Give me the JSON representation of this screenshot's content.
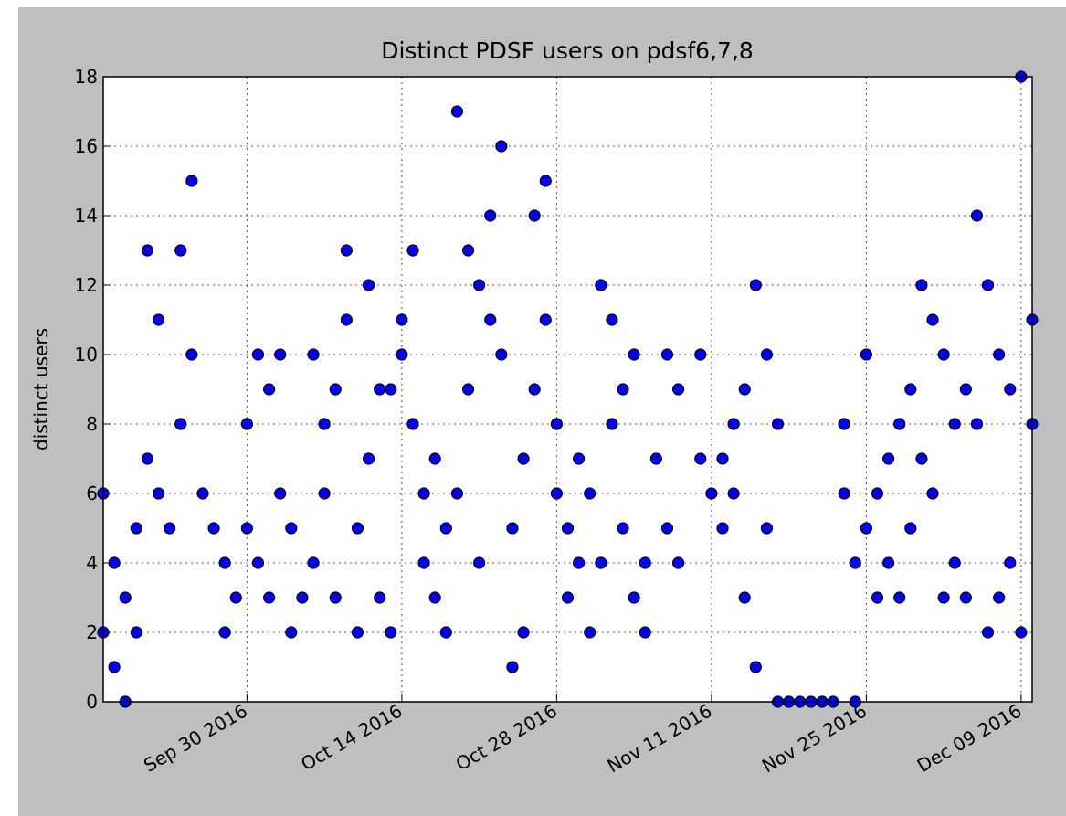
{
  "chart_data": {
    "type": "scatter",
    "title": "Distinct PDSF users on pdsf6,7,8",
    "y_label": "distinct users",
    "color": "#0000ff",
    "x": [
      "2016-09-17",
      "2016-09-17",
      "2016-09-18",
      "2016-09-18",
      "2016-09-19",
      "2016-09-19",
      "2016-09-20",
      "2016-09-20",
      "2016-09-21",
      "2016-09-21",
      "2016-09-22",
      "2016-09-22",
      "2016-09-23",
      "2016-09-24",
      "2016-09-24",
      "2016-09-25",
      "2016-09-25",
      "2016-09-26",
      "2016-09-27",
      "2016-09-28",
      "2016-09-28",
      "2016-09-29",
      "2016-09-30",
      "2016-09-30",
      "2016-10-01",
      "2016-10-01",
      "2016-10-02",
      "2016-10-02",
      "2016-10-03",
      "2016-10-03",
      "2016-10-04",
      "2016-10-04",
      "2016-10-05",
      "2016-10-06",
      "2016-10-06",
      "2016-10-07",
      "2016-10-07",
      "2016-10-08",
      "2016-10-08",
      "2016-10-09",
      "2016-10-09",
      "2016-10-10",
      "2016-10-10",
      "2016-10-11",
      "2016-10-11",
      "2016-10-12",
      "2016-10-12",
      "2016-10-13",
      "2016-10-13",
      "2016-10-14",
      "2016-10-14",
      "2016-10-15",
      "2016-10-15",
      "2016-10-16",
      "2016-10-16",
      "2016-10-17",
      "2016-10-17",
      "2016-10-18",
      "2016-10-18",
      "2016-10-19",
      "2016-10-19",
      "2016-10-20",
      "2016-10-20",
      "2016-10-21",
      "2016-10-21",
      "2016-10-22",
      "2016-10-22",
      "2016-10-23",
      "2016-10-23",
      "2016-10-24",
      "2016-10-24",
      "2016-10-25",
      "2016-10-25",
      "2016-10-26",
      "2016-10-26",
      "2016-10-27",
      "2016-10-27",
      "2016-10-28",
      "2016-10-28",
      "2016-10-29",
      "2016-10-29",
      "2016-10-30",
      "2016-10-30",
      "2016-10-31",
      "2016-10-31",
      "2016-11-01",
      "2016-11-01",
      "2016-11-02",
      "2016-11-02",
      "2016-11-03",
      "2016-11-03",
      "2016-11-04",
      "2016-11-04",
      "2016-11-05",
      "2016-11-05",
      "2016-11-06",
      "2016-11-07",
      "2016-11-07",
      "2016-11-08",
      "2016-11-08",
      "2016-11-10",
      "2016-11-10",
      "2016-11-11",
      "2016-11-12",
      "2016-11-12",
      "2016-11-13",
      "2016-11-13",
      "2016-11-14",
      "2016-11-14",
      "2016-11-15",
      "2016-11-15",
      "2016-11-16",
      "2016-11-16",
      "2016-11-17",
      "2016-11-17",
      "2016-11-18",
      "2016-11-19",
      "2016-11-20",
      "2016-11-21",
      "2016-11-22",
      "2016-11-23",
      "2016-11-23",
      "2016-11-24",
      "2016-11-24",
      "2016-11-25",
      "2016-11-25",
      "2016-11-26",
      "2016-11-26",
      "2016-11-27",
      "2016-11-27",
      "2016-11-28",
      "2016-11-28",
      "2016-11-29",
      "2016-11-29",
      "2016-11-30",
      "2016-11-30",
      "2016-12-01",
      "2016-12-01",
      "2016-12-02",
      "2016-12-02",
      "2016-12-03",
      "2016-12-03",
      "2016-12-04",
      "2016-12-04",
      "2016-12-05",
      "2016-12-05",
      "2016-12-06",
      "2016-12-06",
      "2016-12-07",
      "2016-12-07",
      "2016-12-08",
      "2016-12-08",
      "2016-12-09",
      "2016-12-09",
      "2016-12-10",
      "2016-12-10"
    ],
    "values": [
      6,
      2,
      4,
      1,
      0,
      3,
      5,
      2,
      13,
      7,
      11,
      6,
      5,
      13,
      8,
      15,
      10,
      6,
      5,
      2,
      4,
      3,
      8,
      5,
      10,
      4,
      9,
      3,
      10,
      6,
      2,
      5,
      3,
      10,
      4,
      8,
      6,
      9,
      3,
      13,
      11,
      2,
      5,
      12,
      7,
      9,
      3,
      9,
      2,
      11,
      10,
      13,
      8,
      6,
      4,
      7,
      3,
      2,
      5,
      17,
      6,
      13,
      9,
      12,
      4,
      14,
      11,
      16,
      10,
      1,
      5,
      2,
      7,
      14,
      9,
      15,
      11,
      8,
      6,
      3,
      5,
      4,
      7,
      2,
      6,
      12,
      4,
      11,
      8,
      9,
      5,
      10,
      3,
      2,
      4,
      7,
      10,
      5,
      9,
      4,
      10,
      7,
      6,
      7,
      5,
      8,
      6,
      9,
      3,
      12,
      1,
      10,
      5,
      0,
      8,
      0,
      0,
      0,
      0,
      0,
      8,
      6,
      0,
      4,
      10,
      5,
      6,
      3,
      7,
      4,
      8,
      3,
      9,
      5,
      12,
      7,
      11,
      6,
      10,
      3,
      8,
      4,
      9,
      3,
      14,
      8,
      12,
      2,
      10,
      3,
      9,
      4,
      18,
      2,
      11,
      8
    ],
    "xlim": [
      "2016-09-17",
      "2016-12-10"
    ],
    "xticks": [
      {
        "value": "2016-09-30",
        "label": "Sep 30 2016"
      },
      {
        "value": "2016-10-14",
        "label": "Oct 14 2016"
      },
      {
        "value": "2016-10-28",
        "label": "Oct 28 2016"
      },
      {
        "value": "2016-11-11",
        "label": "Nov 11 2016"
      },
      {
        "value": "2016-11-25",
        "label": "Nov 25 2016"
      },
      {
        "value": "2016-12-09",
        "label": "Dec 09 2016"
      }
    ],
    "ylim": [
      0,
      18
    ],
    "yticks": [
      0,
      2,
      4,
      6,
      8,
      10,
      12,
      14,
      16,
      18
    ],
    "grid": true
  }
}
